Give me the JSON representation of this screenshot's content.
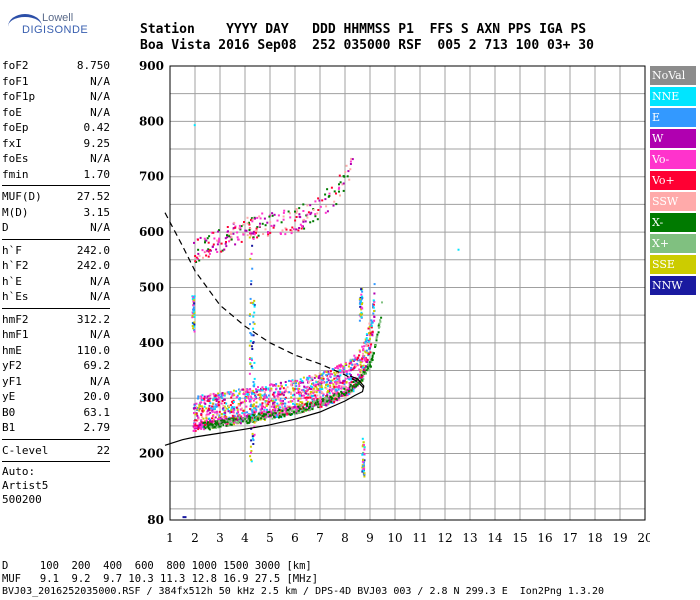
{
  "logo": {
    "top": "Lowell",
    "bottom": "DIGISONDE"
  },
  "header": {
    "line1": "Station    YYYY DAY   DDD HHMMSS P1  FFS S AXN PPS IGA PS",
    "line2": "Boa Vista 2016 Sep08  252 035000 RSF  005 2 713 100 03+ 30"
  },
  "params": {
    "group1": [
      [
        "foF2",
        "8.750"
      ],
      [
        "foF1",
        "N/A"
      ],
      [
        "foF1p",
        "N/A"
      ],
      [
        "foE",
        "N/A"
      ],
      [
        "foEp",
        "0.42"
      ],
      [
        "fxI",
        "9.25"
      ],
      [
        "foEs",
        "N/A"
      ],
      [
        "fmin",
        "1.70"
      ]
    ],
    "group2": [
      [
        "MUF(D)",
        "27.52"
      ],
      [
        "M(D)",
        "3.15"
      ],
      [
        "D",
        "N/A"
      ]
    ],
    "group3": [
      [
        "h`F",
        "242.0"
      ],
      [
        "h`F2",
        "242.0"
      ],
      [
        "h`E",
        "N/A"
      ],
      [
        "h`Es",
        "N/A"
      ]
    ],
    "group4": [
      [
        "hmF2",
        "312.2"
      ],
      [
        "hmF1",
        "N/A"
      ],
      [
        "hmE",
        "110.0"
      ],
      [
        "yF2",
        "69.2"
      ],
      [
        "yF1",
        "N/A"
      ],
      [
        "yE",
        "20.0"
      ],
      [
        "B0",
        "63.1"
      ],
      [
        "B1",
        "2.79"
      ]
    ],
    "group5": [
      [
        "C-level",
        "22"
      ]
    ]
  },
  "auto": {
    "l1": "Auto:",
    "l2": "Artist5",
    "l3": "500200"
  },
  "legend": [
    {
      "label": "NoVal",
      "color": "#8c8c8c"
    },
    {
      "label": "NNE",
      "color": "#00e5ff"
    },
    {
      "label": "E",
      "color": "#3399ff"
    },
    {
      "label": "W",
      "color": "#b000b0"
    },
    {
      "label": "Vo-",
      "color": "#ff33cc"
    },
    {
      "label": "Vo+",
      "color": "#ff0033"
    },
    {
      "label": "SSW",
      "color": "#ffaaaa"
    },
    {
      "label": "X-",
      "color": "#007a00"
    },
    {
      "label": "X+",
      "color": "#80c080"
    },
    {
      "label": "SSE",
      "color": "#cccc00"
    },
    {
      "label": "NNW",
      "color": "#1a1aa0"
    }
  ],
  "footer": {
    "d_row": "D     100  200  400  600  800 1000 1500 3000 [km]",
    "muf_row": "MUF   9.1  9.2  9.7 10.3 11.3 12.8 16.9 27.5 [MHz]",
    "file_row": "BVJ03_2016252035000.RSF / 384fx512h 50 kHz 2.5 km / DPS-4D BVJ03 003 / 2.8 N 299.3 E  Ion2Png 1.3.20"
  },
  "chart_data": {
    "type": "scatter",
    "xlim": [
      1,
      20
    ],
    "ylim": [
      80,
      900
    ],
    "xticks": [
      1,
      2,
      3,
      4,
      5,
      6,
      7,
      8,
      9,
      10,
      11,
      12,
      13,
      14,
      15,
      16,
      17,
      18,
      19,
      20
    ],
    "yticks": [
      80,
      200,
      300,
      400,
      500,
      600,
      700,
      800,
      900
    ],
    "grid": true,
    "o_trace": [
      [
        1.9,
        250
      ],
      [
        2.5,
        255
      ],
      [
        3,
        258
      ],
      [
        3.5,
        261
      ],
      [
        4,
        265
      ],
      [
        4.5,
        268
      ],
      [
        5,
        272
      ],
      [
        5.5,
        276
      ],
      [
        6,
        281
      ],
      [
        6.5,
        287
      ],
      [
        7,
        293
      ],
      [
        7.5,
        301
      ],
      [
        8,
        312
      ],
      [
        8.3,
        322
      ],
      [
        8.6,
        338
      ],
      [
        8.8,
        360
      ],
      [
        9,
        395
      ],
      [
        9.1,
        430
      ],
      [
        9.15,
        460
      ]
    ],
    "x_trace": [
      [
        2.3,
        250
      ],
      [
        3,
        254
      ],
      [
        4,
        262
      ],
      [
        5,
        270
      ],
      [
        6,
        279
      ],
      [
        7,
        292
      ],
      [
        8,
        312
      ],
      [
        8.6,
        335
      ],
      [
        9,
        365
      ],
      [
        9.2,
        400
      ],
      [
        9.4,
        450
      ],
      [
        9.45,
        475
      ]
    ],
    "spread_trace": [
      [
        1.9,
        560
      ],
      [
        2.5,
        570
      ],
      [
        3,
        580
      ],
      [
        4,
        600
      ],
      [
        5,
        610
      ],
      [
        6,
        615
      ],
      [
        7,
        640
      ],
      [
        7.5,
        660
      ],
      [
        8,
        690
      ],
      [
        8.3,
        730
      ]
    ],
    "profile_solid": [
      [
        0.8,
        215
      ],
      [
        1.5,
        225
      ],
      [
        2,
        230
      ],
      [
        3,
        237
      ],
      [
        4,
        244
      ],
      [
        5,
        252
      ],
      [
        6,
        262
      ],
      [
        7,
        275
      ],
      [
        7.5,
        285
      ],
      [
        8,
        295
      ],
      [
        8.4,
        305
      ],
      [
        8.7,
        312
      ],
      [
        8.75,
        322
      ],
      [
        8.5,
        335
      ],
      [
        8.2,
        340
      ]
    ],
    "profile_dashed": [
      [
        0.8,
        635
      ],
      [
        1.5,
        575
      ],
      [
        2,
        530
      ],
      [
        3,
        468
      ],
      [
        4,
        430
      ],
      [
        5,
        400
      ],
      [
        6,
        378
      ],
      [
        7,
        362
      ],
      [
        7.5,
        352
      ],
      [
        8,
        342
      ],
      [
        8.5,
        330
      ],
      [
        8.75,
        318
      ]
    ]
  }
}
